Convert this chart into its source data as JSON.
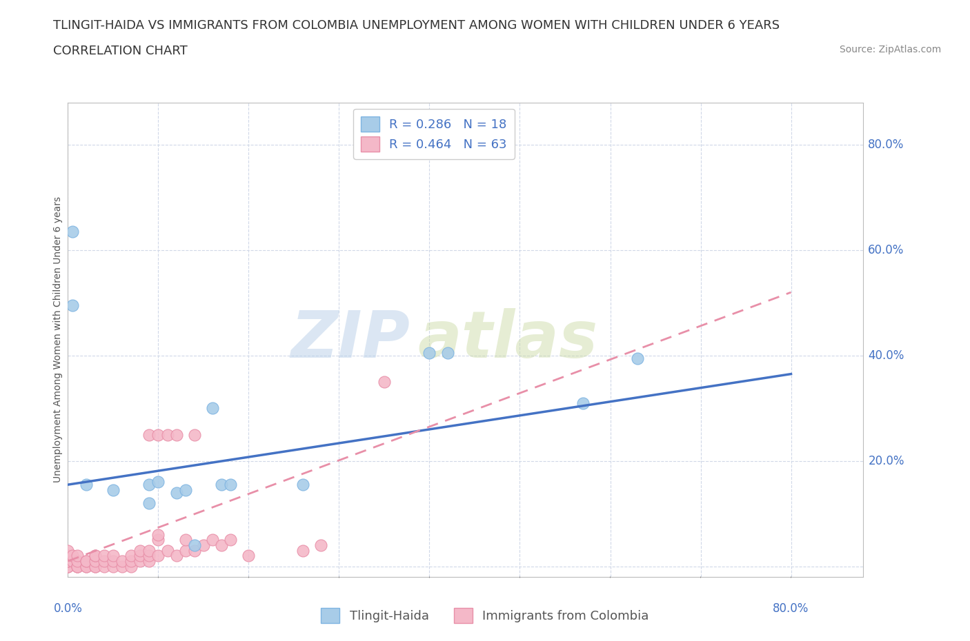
{
  "title_line1": "TLINGIT-HAIDA VS IMMIGRANTS FROM COLOMBIA UNEMPLOYMENT AMONG WOMEN WITH CHILDREN UNDER 6 YEARS",
  "title_line2": "CORRELATION CHART",
  "source": "Source: ZipAtlas.com",
  "ylabel": "Unemployment Among Women with Children Under 6 years",
  "series": [
    {
      "name": "Tlingit-Haida",
      "color": "#a8cce8",
      "edge_color": "#7eb4e2",
      "R": 0.286,
      "N": 18,
      "x": [
        0.005,
        0.005,
        0.02,
        0.05,
        0.09,
        0.09,
        0.1,
        0.12,
        0.13,
        0.14,
        0.16,
        0.17,
        0.18,
        0.26,
        0.4,
        0.42,
        0.57,
        0.63
      ],
      "y": [
        0.635,
        0.495,
        0.155,
        0.145,
        0.155,
        0.12,
        0.16,
        0.14,
        0.145,
        0.04,
        0.3,
        0.155,
        0.155,
        0.155,
        0.405,
        0.405,
        0.31,
        0.395
      ]
    },
    {
      "name": "Immigrants from Colombia",
      "color": "#f4b8c8",
      "edge_color": "#e88fa8",
      "R": 0.464,
      "N": 63,
      "x": [
        0.0,
        0.0,
        0.0,
        0.0,
        0.0,
        0.0,
        0.0,
        0.0,
        0.0,
        0.005,
        0.005,
        0.01,
        0.01,
        0.01,
        0.01,
        0.01,
        0.02,
        0.02,
        0.02,
        0.02,
        0.03,
        0.03,
        0.03,
        0.03,
        0.03,
        0.04,
        0.04,
        0.04,
        0.05,
        0.05,
        0.05,
        0.06,
        0.06,
        0.07,
        0.07,
        0.07,
        0.08,
        0.08,
        0.08,
        0.09,
        0.09,
        0.09,
        0.09,
        0.1,
        0.1,
        0.1,
        0.1,
        0.11,
        0.11,
        0.12,
        0.12,
        0.13,
        0.13,
        0.14,
        0.14,
        0.15,
        0.16,
        0.17,
        0.18,
        0.2,
        0.26,
        0.28,
        0.35
      ],
      "y": [
        0.0,
        0.0,
        0.0,
        0.01,
        0.01,
        0.01,
        0.02,
        0.02,
        0.03,
        0.01,
        0.02,
        0.0,
        0.0,
        0.0,
        0.01,
        0.02,
        0.0,
        0.0,
        0.01,
        0.01,
        0.0,
        0.0,
        0.01,
        0.02,
        0.02,
        0.0,
        0.01,
        0.02,
        0.0,
        0.01,
        0.02,
        0.0,
        0.01,
        0.0,
        0.01,
        0.02,
        0.01,
        0.02,
        0.03,
        0.01,
        0.02,
        0.03,
        0.25,
        0.02,
        0.05,
        0.06,
        0.25,
        0.03,
        0.25,
        0.02,
        0.25,
        0.03,
        0.05,
        0.03,
        0.25,
        0.04,
        0.05,
        0.04,
        0.05,
        0.02,
        0.03,
        0.04,
        0.35
      ]
    }
  ],
  "trendline_blue": {
    "x_start": 0.0,
    "x_end": 0.8,
    "y_start": 0.155,
    "y_end": 0.365,
    "color": "#4472c4",
    "linestyle": "solid",
    "linewidth": 2.5
  },
  "trendline_pink": {
    "x_start": 0.0,
    "x_end": 0.8,
    "y_start": 0.01,
    "y_end": 0.52,
    "color": "#e88fa8",
    "linestyle": "dashed",
    "linewidth": 2.0
  },
  "xlim": [
    0.0,
    0.88
  ],
  "ylim": [
    -0.02,
    0.88
  ],
  "right_yticks": [
    0.2,
    0.4,
    0.6,
    0.8
  ],
  "right_ytick_labels": [
    "20.0%",
    "40.0%",
    "60.0%",
    "80.0%"
  ],
  "bottom_xtick_labels_left": "0.0%",
  "bottom_xtick_labels_right": "80.0%",
  "grid_yticks": [
    0.0,
    0.2,
    0.4,
    0.6,
    0.8
  ],
  "grid_xticks": [
    0.0,
    0.1,
    0.2,
    0.3,
    0.4,
    0.5,
    0.6,
    0.7,
    0.8
  ],
  "grid_color": "#d0d8e8",
  "background_color": "#ffffff",
  "watermark_zip": "ZIP",
  "watermark_atlas": "atlas",
  "title_fontsize": 13,
  "subtitle_fontsize": 13,
  "axis_label_fontsize": 10,
  "tick_fontsize": 12,
  "legend_fontsize": 13,
  "source_fontsize": 10
}
